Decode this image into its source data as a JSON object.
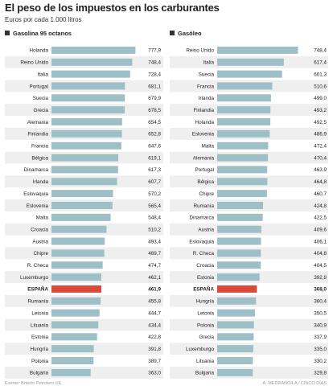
{
  "header": {
    "title": "El peso de los impuestos en los carburantes",
    "subtitle": "Euros por cada 1.000 litros"
  },
  "footer": {
    "source": "Fuente: Boletín Petrolero UE",
    "credit": "A. MEDRANO/LA / CINCO DÍAS"
  },
  "colors": {
    "bar": "#9fbfc7",
    "highlight": "#d94a3a",
    "shade": "#efefef",
    "text": "#222222"
  },
  "chart_data": [
    {
      "type": "bar",
      "orientation": "horizontal",
      "title": "Gasolina 95 octanos",
      "highlight": "ESPAÑA",
      "categories": [
        "Holanda",
        "Reino Unido",
        "Italia",
        "Portugal",
        "Suecia",
        "Grecia",
        "Alemania",
        "Finlandia",
        "Francia",
        "Bélgica",
        "Dinamarca",
        "Irlanda",
        "Eslovaquia",
        "Eslovenia",
        "Malta",
        "Croacia",
        "Austria",
        "Chipre",
        "R. Checa",
        "Luxemburgo",
        "ESPAÑA",
        "Rumanía",
        "Letonia",
        "Lituania",
        "Estonia",
        "Hungría",
        "Polonia",
        "Bulgaria"
      ],
      "values": [
        777.9,
        748.4,
        728.4,
        681.1,
        679.9,
        678.5,
        654.5,
        652.8,
        647.6,
        619.1,
        617.3,
        607.7,
        570.2,
        565.4,
        548.4,
        510.2,
        493.4,
        489.7,
        474.7,
        462.1,
        461.9,
        455.8,
        444.7,
        434.4,
        422.8,
        391.8,
        389.7,
        363.0
      ],
      "labels": [
        "777,9",
        "748,4",
        "728,4",
        "681,1",
        "679,9",
        "678,5",
        "654,5",
        "652,8",
        "647,6",
        "619,1",
        "617,3",
        "607,7",
        "570,2",
        "565,4",
        "548,4",
        "510,2",
        "493,4",
        "489,7",
        "474,7",
        "462,1",
        "461,9",
        "455,8",
        "444,7",
        "434,4",
        "422,8",
        "391,8",
        "389,7",
        "363,0"
      ]
    },
    {
      "type": "bar",
      "orientation": "horizontal",
      "title": "Gasóleo",
      "highlight": "ESPAÑA",
      "categories": [
        "Reino Unido",
        "Italia",
        "Suecia",
        "Francia",
        "Irlanda",
        "Finlandia",
        "Holanda",
        "Eslovenia",
        "Malta",
        "Alemania",
        "Portugal",
        "Bélgica",
        "Chipre",
        "Rumanía",
        "Dinamarca",
        "Austria",
        "Eslovaquia",
        "R. Checa",
        "Croacia",
        "Estonia",
        "ESPAÑA",
        "Hungría",
        "Letonia",
        "Polonia",
        "Grecia",
        "Luxemburgo",
        "Lituania",
        "Bulgaria"
      ],
      "values": [
        748.4,
        617.4,
        601.3,
        510.6,
        499.0,
        493.2,
        492.5,
        486.9,
        472.4,
        470.4,
        463.9,
        464.8,
        460.7,
        424.8,
        422.5,
        409.6,
        406.1,
        404.8,
        404.5,
        392.8,
        368.0,
        360.4,
        350.5,
        340.9,
        337.9,
        335.0,
        330.2,
        329.8
      ],
      "labels": [
        "748,4",
        "617,4",
        "601,3",
        "510,6",
        "499,0",
        "493,2",
        "492,5",
        "486,9",
        "472,4",
        "470,4",
        "463,9",
        "464,8",
        "460,7",
        "424,8",
        "422,5",
        "409,6",
        "406,1",
        "404,8",
        "404,5",
        "392,8",
        "368,0",
        "360,4",
        "350,5",
        "340,9",
        "337,9",
        "335,0",
        "330,2",
        "329,8"
      ]
    }
  ]
}
